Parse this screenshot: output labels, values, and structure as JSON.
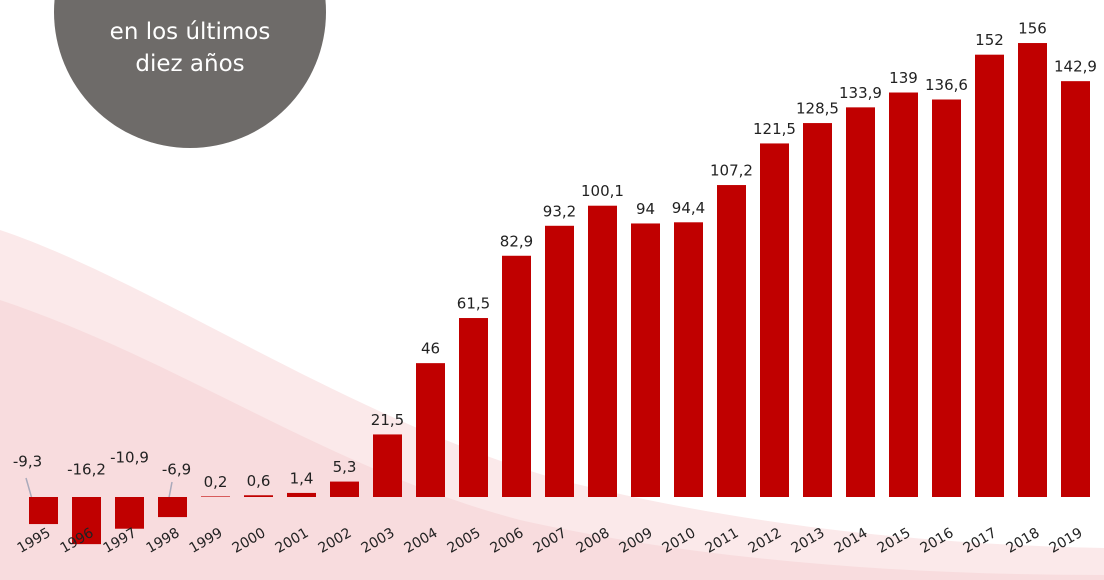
{
  "chart_data": {
    "type": "bar",
    "title": "en los últimos diez años",
    "categories": [
      "1995",
      "1996",
      "1997",
      "1998",
      "1999",
      "2000",
      "2001",
      "2002",
      "2003",
      "2004",
      "2005",
      "2006",
      "2007",
      "2008",
      "2009",
      "2010",
      "2011",
      "2012",
      "2013",
      "2014",
      "2015",
      "2016",
      "2017",
      "2018",
      "2019"
    ],
    "values": [
      -9.3,
      -16.2,
      -10.9,
      -6.9,
      0.2,
      0.6,
      1.4,
      5.3,
      21.5,
      46,
      61.5,
      82.9,
      93.2,
      100.1,
      94,
      94.4,
      107.2,
      121.5,
      128.5,
      133.9,
      139,
      136.6,
      152,
      156,
      142.9
    ],
    "value_labels": [
      "-9,3",
      "-16,2",
      "-10,9",
      "-6,9",
      "0,2",
      "0,6",
      "1,4",
      "5,3",
      "21,5",
      "46",
      "61,5",
      "82,9",
      "93,2",
      "100,1",
      "94",
      "94,4",
      "107,2",
      "121,5",
      "128,5",
      "133,9",
      "139",
      "136,6",
      "152",
      "156",
      "142,9"
    ],
    "color": "#c00000",
    "ylim": [
      -20,
      160
    ]
  }
}
